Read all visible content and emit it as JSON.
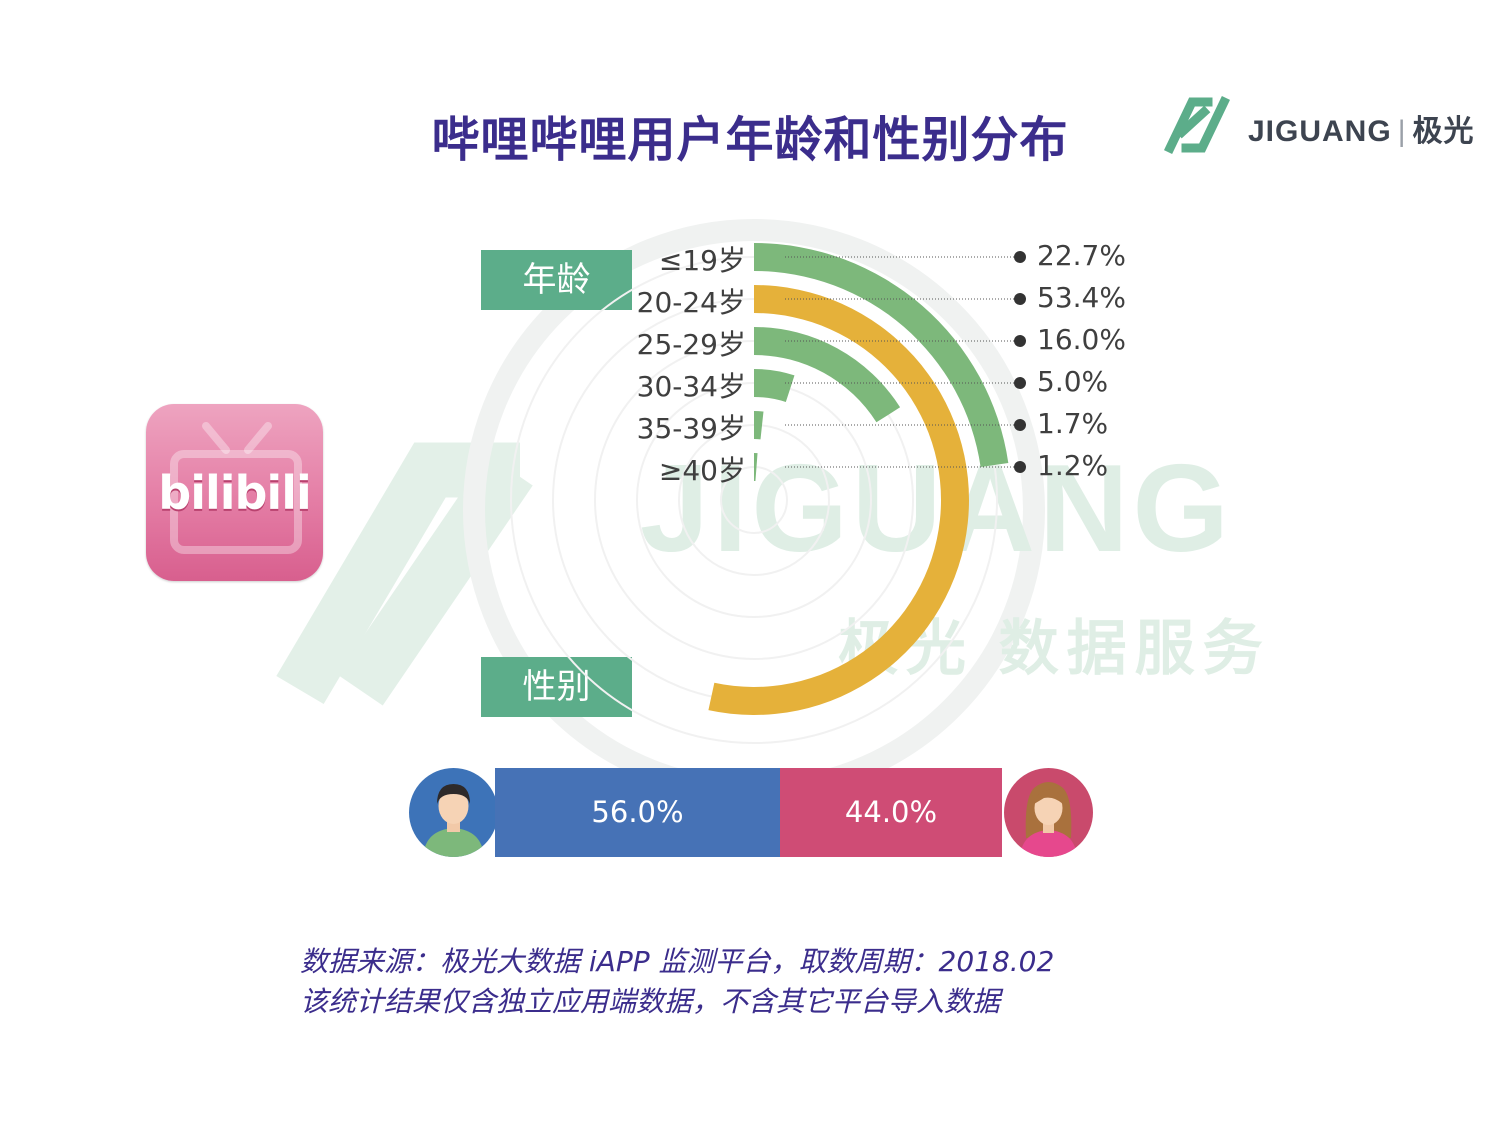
{
  "title": "哔哩哔哩用户年龄和性别分布",
  "brand": {
    "name": "JIGUANG",
    "sep": "|",
    "cn": "极光"
  },
  "watermark": {
    "big": "JIGUANG",
    "small": "极光 数据服务"
  },
  "app_icon": {
    "text": "bilibili",
    "icon": "bilibili-tv-icon"
  },
  "sections": {
    "age": "年龄",
    "gender": "性别"
  },
  "colors": {
    "green": "#7db87b",
    "yellow": "#e5b13a",
    "label_green": "#5cad8a",
    "male": "#4672b6",
    "female": "#cf4c75",
    "title": "#3b2d8c"
  },
  "chart_data": {
    "type": "radial-bar",
    "title": "哔哩哔哩用户年龄和性别分布",
    "categories": [
      "≤19岁",
      "20-24岁",
      "25-29岁",
      "30-34岁",
      "35-39岁",
      "≥40岁"
    ],
    "values": [
      22.7,
      53.4,
      16.0,
      5.0,
      1.7,
      1.2
    ],
    "labels": [
      "22.7%",
      "53.4%",
      "16.0%",
      "5.0%",
      "1.7%",
      "1.2%"
    ],
    "bar_colors": [
      "#7db87b",
      "#e5b13a",
      "#7db87b",
      "#7db87b",
      "#7db87b",
      "#7db87b"
    ],
    "gender": {
      "categories": [
        "男",
        "女"
      ],
      "values": [
        56.0,
        44.0
      ],
      "labels": [
        "56.0%",
        "44.0%"
      ]
    }
  },
  "footer": {
    "line1": "数据来源：极光大数据 iAPP 监测平台，取数周期：2018.02",
    "line2": "该统计结果仅含独立应用端数据，不含其它平台导入数据"
  }
}
